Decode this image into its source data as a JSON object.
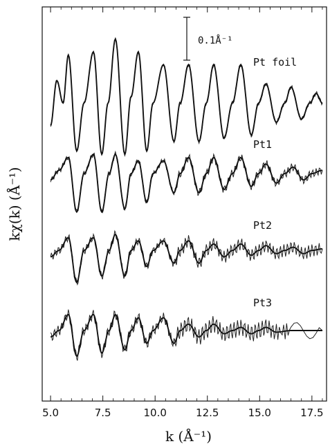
{
  "chart_data": {
    "type": "line",
    "xlabel": "k  (Å⁻¹)",
    "ylabel": "kχ(k)  (Å⁻¹)",
    "xlim": [
      4.6,
      18.2
    ],
    "xticks": [
      "5.0",
      "7.5",
      "10.0",
      "12.5",
      "15.0",
      "17.5"
    ],
    "xtick_values": [
      5.0,
      7.5,
      10.0,
      12.5,
      15.0,
      17.5
    ],
    "grid": false,
    "scale_bar": {
      "label": "0.1Å⁻¹",
      "value": 0.1
    },
    "series": [
      {
        "name": "Pt foil",
        "offset": 0.6,
        "extrema": [
          [
            5.0,
            -0.07
          ],
          [
            5.3,
            0.07
          ],
          [
            5.6,
            0.0
          ],
          [
            5.85,
            0.15
          ],
          [
            6.25,
            -0.15
          ],
          [
            6.6,
            0.0
          ],
          [
            7.05,
            0.16
          ],
          [
            7.45,
            -0.16
          ],
          [
            7.75,
            0.0
          ],
          [
            8.1,
            0.2
          ],
          [
            8.55,
            -0.16
          ],
          [
            8.85,
            0.02
          ],
          [
            9.2,
            0.16
          ],
          [
            9.6,
            -0.15
          ],
          [
            9.9,
            0.0
          ],
          [
            10.4,
            0.12
          ],
          [
            10.9,
            -0.12
          ],
          [
            11.2,
            0.0
          ],
          [
            11.6,
            0.12
          ],
          [
            12.1,
            -0.12
          ],
          [
            12.45,
            0.0
          ],
          [
            12.8,
            0.12
          ],
          [
            13.3,
            -0.11
          ],
          [
            13.7,
            0.0
          ],
          [
            14.1,
            0.12
          ],
          [
            14.6,
            -0.1
          ],
          [
            14.95,
            0.0
          ],
          [
            15.3,
            0.06
          ],
          [
            15.8,
            -0.06
          ],
          [
            16.2,
            0.0
          ],
          [
            16.5,
            0.05
          ],
          [
            17.0,
            -0.05
          ],
          [
            17.4,
            0.0
          ],
          [
            17.7,
            0.03
          ],
          [
            18.0,
            0.0
          ]
        ]
      },
      {
        "name": "Pt1",
        "offset": 0.38,
        "extrema": [
          [
            5.0,
            -0.02
          ],
          [
            5.4,
            0.01
          ],
          [
            5.85,
            0.05
          ],
          [
            6.25,
            -0.12
          ],
          [
            6.6,
            0.0
          ],
          [
            7.05,
            0.06
          ],
          [
            7.45,
            -0.12
          ],
          [
            7.8,
            0.0
          ],
          [
            8.1,
            0.06
          ],
          [
            8.55,
            -0.11
          ],
          [
            8.85,
            0.0
          ],
          [
            9.2,
            0.04
          ],
          [
            9.6,
            -0.09
          ],
          [
            9.9,
            0.0
          ],
          [
            10.4,
            0.04
          ],
          [
            10.9,
            -0.06
          ],
          [
            11.2,
            0.0
          ],
          [
            11.6,
            0.05
          ],
          [
            12.1,
            -0.06
          ],
          [
            12.45,
            0.0
          ],
          [
            12.8,
            0.05
          ],
          [
            13.3,
            -0.05
          ],
          [
            13.7,
            0.0
          ],
          [
            14.1,
            0.05
          ],
          [
            14.6,
            -0.04
          ],
          [
            14.95,
            0.0
          ],
          [
            15.3,
            0.03
          ],
          [
            15.8,
            -0.03
          ],
          [
            16.2,
            0.0
          ],
          [
            16.6,
            0.02
          ],
          [
            17.1,
            -0.02
          ],
          [
            17.5,
            0.0
          ],
          [
            18.0,
            0.01
          ]
        ]
      },
      {
        "name": "Pt2",
        "offset": 0.14,
        "extrema": [
          [
            5.0,
            -0.02
          ],
          [
            5.4,
            0.0
          ],
          [
            5.85,
            0.04
          ],
          [
            6.25,
            -0.1
          ],
          [
            6.6,
            0.0
          ],
          [
            7.05,
            0.04
          ],
          [
            7.45,
            -0.08
          ],
          [
            7.8,
            0.0
          ],
          [
            8.1,
            0.05
          ],
          [
            8.55,
            -0.08
          ],
          [
            8.85,
            0.0
          ],
          [
            9.2,
            0.03
          ],
          [
            9.6,
            -0.05
          ],
          [
            9.9,
            0.0
          ],
          [
            10.4,
            0.03
          ],
          [
            10.9,
            -0.04
          ],
          [
            11.2,
            0.0
          ],
          [
            11.6,
            0.03
          ],
          [
            12.1,
            -0.04
          ],
          [
            12.45,
            0.0
          ],
          [
            12.8,
            0.02
          ],
          [
            13.3,
            -0.02
          ],
          [
            13.7,
            0.0
          ],
          [
            14.1,
            0.02
          ],
          [
            14.6,
            -0.015
          ],
          [
            14.95,
            0.0
          ],
          [
            15.3,
            0.015
          ],
          [
            15.8,
            -0.01
          ],
          [
            16.2,
            0.0
          ],
          [
            16.6,
            0.01
          ],
          [
            17.1,
            -0.01
          ],
          [
            17.5,
            0.0
          ],
          [
            18.0,
            0.005
          ]
        ]
      },
      {
        "name": "Pt3",
        "offset": -0.11,
        "extrema": [
          [
            5.0,
            -0.02
          ],
          [
            5.4,
            0.0
          ],
          [
            5.85,
            0.05
          ],
          [
            6.25,
            -0.08
          ],
          [
            6.6,
            0.0
          ],
          [
            7.05,
            0.05
          ],
          [
            7.45,
            -0.07
          ],
          [
            7.8,
            0.0
          ],
          [
            8.1,
            0.05
          ],
          [
            8.55,
            -0.06
          ],
          [
            8.85,
            0.0
          ],
          [
            9.2,
            0.04
          ],
          [
            9.6,
            -0.04
          ],
          [
            9.9,
            0.0
          ],
          [
            10.4,
            0.04
          ],
          [
            10.9,
            -0.04
          ],
          [
            11.2,
            0.0
          ],
          [
            11.6,
            0.02
          ],
          [
            12.1,
            -0.02
          ],
          [
            12.45,
            0.0
          ],
          [
            12.8,
            0.02
          ],
          [
            13.3,
            -0.01
          ],
          [
            13.7,
            0.0
          ],
          [
            14.1,
            0.01
          ],
          [
            14.6,
            -0.01
          ],
          [
            14.95,
            0.0
          ],
          [
            15.3,
            0.01
          ],
          [
            15.8,
            -0.005
          ],
          [
            16.5,
            0.0
          ],
          [
            18.0,
            0.0
          ]
        ]
      }
    ]
  }
}
